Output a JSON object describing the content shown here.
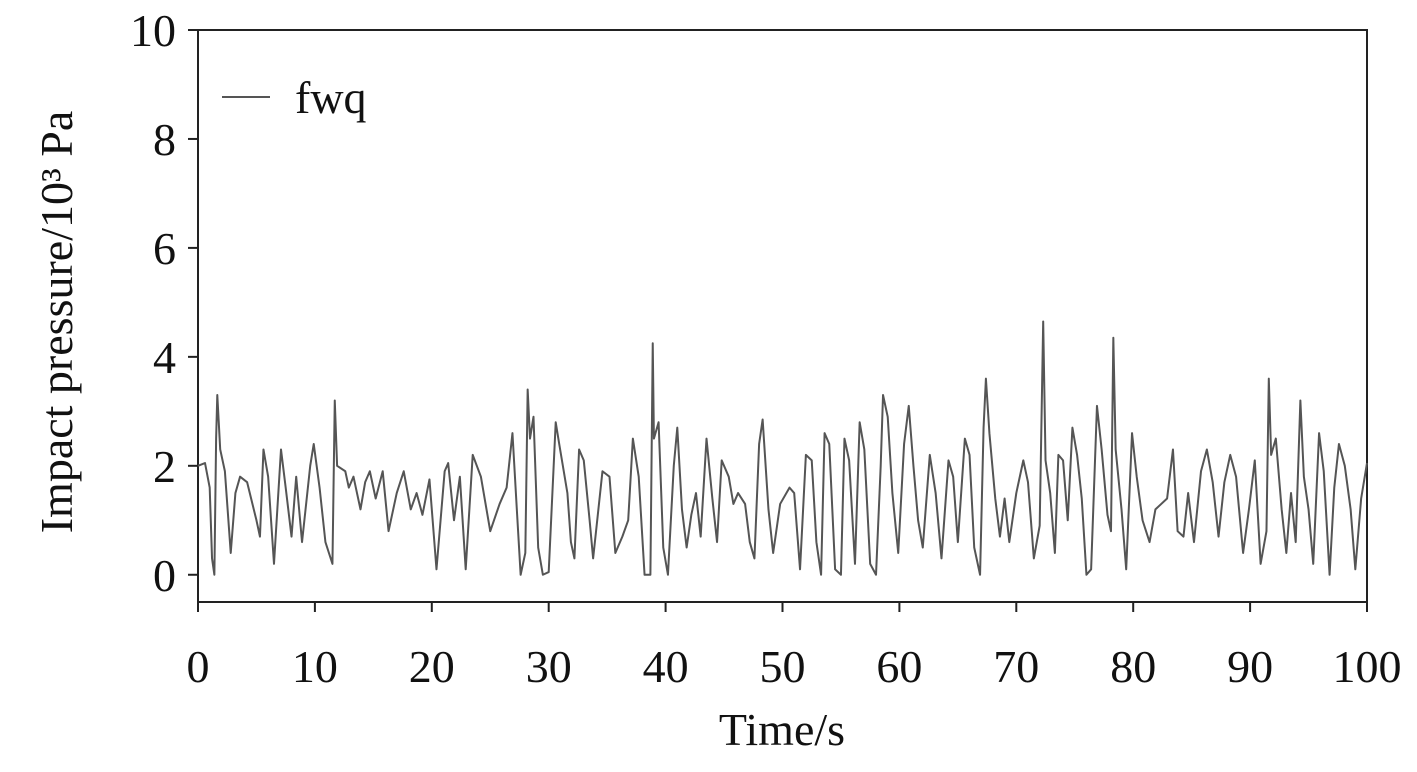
{
  "chart_data": {
    "type": "line",
    "xlabel": "Time/s",
    "ylabel": "Impact pressure/10³ Pa",
    "xlim": [
      0,
      100
    ],
    "ylim": [
      -0.5,
      10
    ],
    "xticks": [
      0,
      10,
      20,
      30,
      40,
      50,
      60,
      70,
      80,
      90,
      100
    ],
    "yticks": [
      0,
      2,
      4,
      6,
      8,
      10
    ],
    "legend": "upper left",
    "x": [
      0,
      0.6,
      1.0,
      1.2,
      1.4,
      1.55,
      1.65,
      1.9,
      2.3,
      2.8,
      3.2,
      3.6,
      4.2,
      5.0,
      5.3,
      5.6,
      6.0,
      6.5,
      7.1,
      7.5,
      8.0,
      8.4,
      8.9,
      9.6,
      9.9,
      10.4,
      10.9,
      11.5,
      11.7,
      11.9,
      12.6,
      12.9,
      13.3,
      13.9,
      14.3,
      14.7,
      15.2,
      15.8,
      16.3,
      17.0,
      17.6,
      18.2,
      18.7,
      19.2,
      19.8,
      20.4,
      21.1,
      21.4,
      21.9,
      22.4,
      22.9,
      23.5,
      24.2,
      25.0,
      25.8,
      26.4,
      26.9,
      27.3,
      27.6,
      28.0,
      28.2,
      28.4,
      28.7,
      29.1,
      29.5,
      30.0,
      30.6,
      30.9,
      31.6,
      31.9,
      32.2,
      32.6,
      33.0,
      33.5,
      33.8,
      34.2,
      34.6,
      35.2,
      35.7,
      36.3,
      36.8,
      37.2,
      37.7,
      38.2,
      38.7,
      38.9,
      39.0,
      39.4,
      39.8,
      40.2,
      40.7,
      41.0,
      41.4,
      41.8,
      42.2,
      42.6,
      43.0,
      43.5,
      44.0,
      44.4,
      44.8,
      45.4,
      45.8,
      46.2,
      46.8,
      47.2,
      47.6,
      48.0,
      48.3,
      48.8,
      49.2,
      49.8,
      50.6,
      51.0,
      51.5,
      52.0,
      52.5,
      52.9,
      53.3,
      53.6,
      54.0,
      54.5,
      55.0,
      55.3,
      55.7,
      56.2,
      56.6,
      57.0,
      57.5,
      58.0,
      58.4,
      58.6,
      59.0,
      59.4,
      59.9,
      60.4,
      60.8,
      61.2,
      61.6,
      62.0,
      62.6,
      63.1,
      63.6,
      64.2,
      64.6,
      65.0,
      65.6,
      66.0,
      66.4,
      66.9,
      67.2,
      67.4,
      67.7,
      68.2,
      68.6,
      69.0,
      69.4,
      70.0,
      70.6,
      71.0,
      71.5,
      72.0,
      72.3,
      72.5,
      72.9,
      73.3,
      73.6,
      74.0,
      74.4,
      74.8,
      75.2,
      75.6,
      76.0,
      76.4,
      76.9,
      77.3,
      77.8,
      78.1,
      78.3,
      78.5,
      79.0,
      79.4,
      79.9,
      80.3,
      80.8,
      81.4,
      81.9,
      82.4,
      82.9,
      83.4,
      83.8,
      84.3,
      84.7,
      85.2,
      85.8,
      86.3,
      86.8,
      87.3,
      87.8,
      88.3,
      88.8,
      89.4,
      89.9,
      90.4,
      90.9,
      91.4,
      91.6,
      91.8,
      92.2,
      92.7,
      93.1,
      93.5,
      93.9,
      94.3,
      94.6,
      95.0,
      95.4,
      95.9,
      96.3,
      96.8,
      97.2,
      97.6,
      98.1,
      98.6,
      99.0,
      99.5,
      100
    ],
    "series": [
      {
        "name": "fwq",
        "color": "#555555",
        "values": [
          2.0,
          2.05,
          1.6,
          0.3,
          0.0,
          2.5,
          3.3,
          2.3,
          1.9,
          0.4,
          1.5,
          1.8,
          1.7,
          1.0,
          0.7,
          2.3,
          1.8,
          0.2,
          2.3,
          1.6,
          0.7,
          1.8,
          0.6,
          2.0,
          2.4,
          1.6,
          0.6,
          0.2,
          3.2,
          2.0,
          1.9,
          1.6,
          1.8,
          1.2,
          1.7,
          1.9,
          1.4,
          1.9,
          0.8,
          1.5,
          1.9,
          1.2,
          1.5,
          1.1,
          1.75,
          0.1,
          1.9,
          2.05,
          1.0,
          1.8,
          0.1,
          2.2,
          1.8,
          0.8,
          1.3,
          1.6,
          2.6,
          1.1,
          0.0,
          0.4,
          3.4,
          2.5,
          2.9,
          0.5,
          0.0,
          0.05,
          2.8,
          2.4,
          1.5,
          0.6,
          0.3,
          2.3,
          2.1,
          1.0,
          0.3,
          1.1,
          1.9,
          1.8,
          0.4,
          0.7,
          1.0,
          2.5,
          1.8,
          0.0,
          0.0,
          4.25,
          2.5,
          2.8,
          0.5,
          0.0,
          2.0,
          2.7,
          1.2,
          0.5,
          1.1,
          1.5,
          0.7,
          2.5,
          1.4,
          0.6,
          2.1,
          1.8,
          1.3,
          1.5,
          1.3,
          0.6,
          0.3,
          2.4,
          2.85,
          1.2,
          0.4,
          1.3,
          1.6,
          1.5,
          0.1,
          2.2,
          2.1,
          0.6,
          0.0,
          2.6,
          2.4,
          0.1,
          0.0,
          2.5,
          2.1,
          0.2,
          2.8,
          2.3,
          0.2,
          0.0,
          2.0,
          3.3,
          2.9,
          1.5,
          0.4,
          2.4,
          3.1,
          2.0,
          1.0,
          0.5,
          2.2,
          1.5,
          0.3,
          2.1,
          1.8,
          0.6,
          2.5,
          2.2,
          0.5,
          0.0,
          2.7,
          3.6,
          2.6,
          1.4,
          0.7,
          1.4,
          0.6,
          1.5,
          2.1,
          1.7,
          0.3,
          0.9,
          4.65,
          2.1,
          1.5,
          0.4,
          2.2,
          2.1,
          1.0,
          2.7,
          2.2,
          1.4,
          0.0,
          0.1,
          3.1,
          2.3,
          1.1,
          0.8,
          4.35,
          2.3,
          1.2,
          0.1,
          2.6,
          1.8,
          1.0,
          0.6,
          1.2,
          1.3,
          1.4,
          2.3,
          0.8,
          0.7,
          1.5,
          0.6,
          1.9,
          2.3,
          1.7,
          0.7,
          1.7,
          2.2,
          1.8,
          0.4,
          1.2,
          2.1,
          0.2,
          0.8,
          3.6,
          2.2,
          2.5,
          1.2,
          0.4,
          1.5,
          0.6,
          3.2,
          1.8,
          1.2,
          0.2,
          2.6,
          1.9,
          0.0,
          1.6,
          2.4,
          2.0,
          1.2,
          0.1,
          1.4,
          2.05
        ]
      }
    ]
  }
}
